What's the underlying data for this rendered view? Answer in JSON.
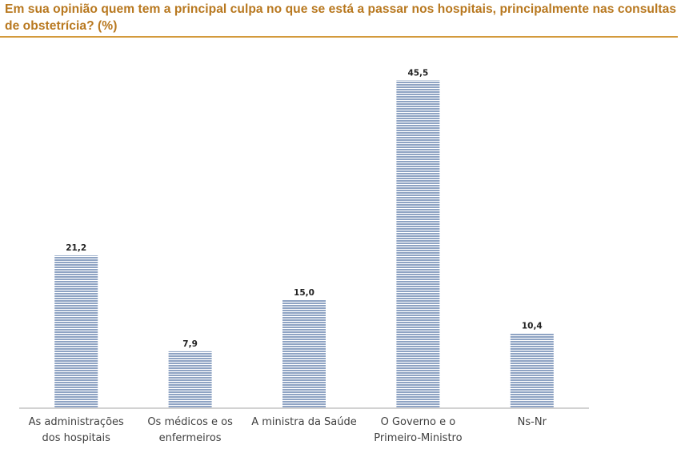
{
  "header": {
    "title": "Em sua opinião quem tem a principal culpa no que se está a passar nos hospitais, principalmente nas consultas de obstetrícia? (%)"
  },
  "colors": {
    "title": "#b8781f",
    "rule": "#d39a3c",
    "bar_stripe": "#8ea3c3",
    "bar_gap": "#ffffff",
    "axis": "#a6a6a6"
  },
  "chart_data": {
    "type": "bar",
    "title": "Em sua opinião quem tem a principal culpa no que se está a passar nos hospitais, principalmente nas consultas de obstetrícia? (%)",
    "categories": [
      [
        "As administrações",
        "dos hospitais"
      ],
      [
        "Os médicos e os",
        "enfermeiros"
      ],
      [
        "A ministra da Saúde"
      ],
      [
        "O Governo e o",
        "Primeiro-Ministro"
      ],
      [
        "Ns-Nr"
      ]
    ],
    "values": [
      21.2,
      7.9,
      15.0,
      45.5,
      10.4
    ],
    "value_labels": [
      "21,2",
      "7,9",
      "15,0",
      "45,5",
      "10,4"
    ],
    "xlabel": "",
    "ylabel": "",
    "ylim": [
      0,
      50
    ],
    "grid": false,
    "legend": "none"
  }
}
